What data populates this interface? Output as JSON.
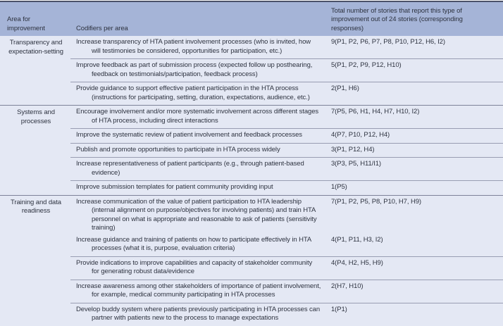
{
  "colors": {
    "header_bg": "#a5b4d7",
    "body_bg": "#e4e8f4",
    "border_dark": "#4a5168",
    "row_sep": "#989db2",
    "group_sep": "#7d8299",
    "text": "#2e3340"
  },
  "table": {
    "headers": [
      "Area for improvement",
      "Codifiers per area",
      "Total number of stories that report this type of improvement out of 24 stories (corresponding responses)"
    ],
    "groups": [
      {
        "area": "Transparency and expectation-setting",
        "rows": [
          {
            "codifier": "Increase transparency of HTA patient involvement processes (who is invited, how will testimonies be considered, opportunities for participation, etc.)",
            "count": "9(P1, P2, P6, P7, P8, P10, P12, H6, I2)"
          },
          {
            "codifier": "Improve feedback as part of submission process (expected follow up posthearing, feedback on testimonials/participation, feedback process)",
            "count": "5(P1, P2, P9, P12, H10)"
          },
          {
            "codifier": "Provide guidance to support effective patient participation in the HTA process (instructions for participating, setting, duration, expectations, audience, etc.)",
            "count": "2(P1, H6)"
          }
        ]
      },
      {
        "area": "Systems and processes",
        "rows": [
          {
            "codifier": "Encourage involvement and/or more systematic involvement across different stages of HTA process, including direct interactions",
            "count": "7(P5, P6, H1, H4, H7, H10, I2)"
          },
          {
            "codifier": "Improve the systematic review of patient involvement and feedback processes",
            "count": "4(P7, P10, P12, H4)"
          },
          {
            "codifier": "Publish and promote opportunities to participate in HTA process widely",
            "count": "3(P1, P12, H4)"
          },
          {
            "codifier": "Increase representativeness of patient participants (e.g., through patient-based evidence)",
            "count": "3(P3, P5, H11/I1)"
          },
          {
            "codifier": "Improve submission templates for patient community providing input",
            "count": "1(P5)"
          }
        ]
      },
      {
        "area": "Training and data readiness",
        "rows": [
          {
            "codifier": "Increase communication of the value of patient participation to HTA leadership (internal alignment on purpose/objectives for involving patients) and train HTA personnel on what is appropriate and reasonable to ask of patients (sensitivity training)",
            "count": "7(P1, P2, P5, P8, P10, H7, H9)"
          },
          {
            "codifier": "Increase guidance and training of patients on how to participate effectively in HTA processes (what it is, purpose, evaluation criteria)",
            "count": "4(P1, P11, H3, I2)"
          },
          {
            "codifier": "Provide indications to improve capabilities and capacity of stakeholder community for generating robust data/evidence",
            "count": "4(P4, H2, H5, H9)"
          },
          {
            "codifier": "Increase awareness among other stakeholders of importance of patient involvement, for example, medical community participating in HTA processes",
            "count": "2(H7, H10)"
          },
          {
            "codifier": "Develop buddy system where patients previously participating in HTA processes can partner with patients new to the process to manage expectations",
            "count": "1(P1)"
          }
        ]
      }
    ]
  }
}
